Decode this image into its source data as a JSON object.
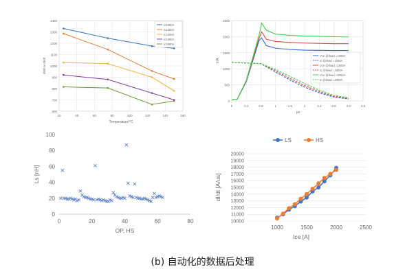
{
  "caption": "(b) 自动化的数据后处理",
  "chart_data": [
    {
      "type": "line",
      "title": "",
      "xlabel": "Temperature/°C",
      "ylabel": "dI/dt or dI/dt",
      "xlim": [
        20,
        160
      ],
      "ylim": [
        600,
        1400
      ],
      "xticks": [
        20,
        40,
        60,
        80,
        100,
        120,
        140,
        160
      ],
      "yticks": [
        600,
        700,
        800,
        900,
        1000,
        1100,
        1200,
        1300,
        1400
      ],
      "grid": true,
      "legend_position": "top-right",
      "series": [
        {
          "name": "Ic1000A",
          "color": "#3a6fb5",
          "x": [
            25,
            75,
            125,
            150
          ],
          "y": [
            1330,
            1245,
            1175,
            1155
          ]
        },
        {
          "name": "Ic1200A",
          "color": "#e07b39",
          "x": [
            25,
            75,
            125,
            150
          ],
          "y": [
            1285,
            1145,
            955,
            885
          ]
        },
        {
          "name": "Ic1400A",
          "color": "#e8b53a",
          "x": [
            25,
            75,
            125,
            150
          ],
          "y": [
            1030,
            1020,
            900,
            780
          ]
        },
        {
          "name": "Ic1600A",
          "color": "#7a3fa0",
          "x": [
            25,
            75,
            125,
            150
          ],
          "y": [
            920,
            880,
            760,
            700
          ]
        },
        {
          "name": "Ic1800A",
          "color": "#6a9a3a",
          "x": [
            25,
            75,
            125,
            150
          ],
          "y": [
            815,
            805,
            660,
            690
          ]
        }
      ]
    },
    {
      "type": "line",
      "title": "",
      "xlabel": "μs",
      "ylabel": "V/A",
      "xlim": [
        0,
        3.6
      ],
      "ylim": [
        0,
        2500
      ],
      "xticks": [
        "0",
        "0.4",
        "0.8",
        "1",
        "1.6",
        "2",
        "2.4",
        "2.8",
        "3.2",
        "3.6"
      ],
      "yticks": [
        0,
        500,
        1000,
        1500,
        2000,
        2500
      ],
      "grid": true,
      "legend_position": "lower-right",
      "series": [
        {
          "name": "Vce @Iload =1000A",
          "color": "#3a5fd0",
          "x": [
            0,
            0.15,
            0.4,
            0.75,
            0.82,
            0.95,
            1.2,
            1.6,
            2.0,
            2.4,
            2.8,
            3.2
          ],
          "y": [
            30,
            50,
            600,
            1880,
            1960,
            1720,
            1640,
            1600,
            1580,
            1575,
            1570,
            1570
          ]
        },
        {
          "name": "Ic @Iload =1000A",
          "color": "#3a5fd0",
          "x": [
            0,
            0.8,
            1.2,
            1.6,
            2.0,
            2.4,
            2.8,
            3.2
          ],
          "y": [
            1200,
            1160,
            900,
            650,
            430,
            250,
            120,
            60
          ]
        },
        {
          "name": "Vce @Iload =1600A",
          "color": "#d04a4a",
          "x": [
            0,
            0.15,
            0.4,
            0.75,
            0.82,
            0.95,
            1.2,
            1.6,
            2.0,
            2.4,
            2.8,
            3.2
          ],
          "y": [
            30,
            50,
            620,
            1950,
            2150,
            1920,
            1850,
            1820,
            1800,
            1790,
            1780,
            1780
          ]
        },
        {
          "name": "Ic @Iload =1600A",
          "color": "#d04a4a",
          "x": [
            0,
            0.8,
            1.2,
            1.6,
            2.0,
            2.4,
            2.8,
            3.2
          ],
          "y": [
            1200,
            1160,
            940,
            700,
            480,
            290,
            140,
            80
          ]
        },
        {
          "name": "Vce @Iload =2000A",
          "color": "#3ecf4a",
          "x": [
            0,
            0.15,
            0.4,
            0.75,
            0.82,
            0.95,
            1.2,
            1.6,
            2.0,
            2.4,
            2.8,
            3.2
          ],
          "y": [
            30,
            50,
            640,
            2050,
            2420,
            2200,
            2080,
            2040,
            2020,
            2010,
            2000,
            1990
          ]
        },
        {
          "name": "Ic @Iload =2000A",
          "color": "#3ecf4a",
          "x": [
            0,
            0.8,
            1.2,
            1.6,
            2.0,
            2.4,
            2.8,
            3.2
          ],
          "y": [
            1200,
            1160,
            980,
            760,
            540,
            330,
            170,
            100
          ]
        }
      ]
    },
    {
      "type": "scatter",
      "title": "",
      "xlabel": "OP, HS",
      "ylabel": "Ls [nH]",
      "xlim": [
        0,
        80
      ],
      "ylim": [
        0,
        100
      ],
      "xticks": [
        0,
        20,
        40,
        60,
        80
      ],
      "yticks": [
        0,
        20,
        40,
        60,
        80,
        100
      ],
      "marker": "x",
      "color": "#5b7fc4",
      "points": [
        [
          1,
          20
        ],
        [
          2,
          55
        ],
        [
          3,
          20
        ],
        [
          4,
          20
        ],
        [
          5,
          19
        ],
        [
          6,
          19
        ],
        [
          7,
          20
        ],
        [
          8,
          19
        ],
        [
          9,
          18
        ],
        [
          10,
          19
        ],
        [
          11,
          17
        ],
        [
          12,
          18
        ],
        [
          13,
          29
        ],
        [
          14,
          24
        ],
        [
          15,
          22
        ],
        [
          16,
          21
        ],
        [
          17,
          21
        ],
        [
          18,
          20
        ],
        [
          19,
          19
        ],
        [
          20,
          19
        ],
        [
          21,
          18
        ],
        [
          22,
          61
        ],
        [
          23,
          18
        ],
        [
          24,
          19
        ],
        [
          25,
          18
        ],
        [
          26,
          17
        ],
        [
          27,
          18
        ],
        [
          28,
          17
        ],
        [
          29,
          16
        ],
        [
          30,
          16
        ],
        [
          31,
          18
        ],
        [
          32,
          17
        ],
        [
          33,
          27
        ],
        [
          34,
          24
        ],
        [
          35,
          22
        ],
        [
          36,
          21
        ],
        [
          37,
          20
        ],
        [
          38,
          20
        ],
        [
          39,
          21
        ],
        [
          40,
          20
        ],
        [
          41,
          87
        ],
        [
          42,
          39
        ],
        [
          43,
          23
        ],
        [
          44,
          22
        ],
        [
          45,
          21
        ],
        [
          46,
          38
        ],
        [
          47,
          21
        ],
        [
          48,
          20
        ],
        [
          49,
          20
        ],
        [
          50,
          19
        ],
        [
          51,
          19
        ],
        [
          52,
          20
        ],
        [
          53,
          19
        ],
        [
          54,
          18
        ],
        [
          55,
          17
        ],
        [
          56,
          16
        ],
        [
          57,
          21
        ],
        [
          58,
          26
        ],
        [
          59,
          21
        ],
        [
          60,
          22
        ],
        [
          61,
          23
        ],
        [
          62,
          22
        ],
        [
          63,
          21
        ]
      ]
    },
    {
      "type": "line",
      "title": "",
      "xlabel": "Ice [A]",
      "ylabel": "dI/dt [A/us]",
      "xlim": [
        500,
        2500
      ],
      "ylim": [
        10000,
        20000
      ],
      "xticks": [
        1000,
        1500,
        2000,
        2500
      ],
      "yticks": [
        10000,
        11000,
        12000,
        13000,
        14000,
        15000,
        16000,
        17000,
        18000,
        19000,
        20000
      ],
      "grid": true,
      "legend_position": "top",
      "series": [
        {
          "name": "LS",
          "color": "#4472c4",
          "x": [
            1000,
            1100,
            1200,
            1300,
            1400,
            1500,
            1600,
            1700,
            1800,
            1900,
            2000
          ],
          "y": [
            10500,
            11000,
            11700,
            12200,
            12900,
            13500,
            14400,
            15000,
            15900,
            16800,
            17900
          ]
        },
        {
          "name": "HS",
          "color": "#ed7d31",
          "x": [
            1000,
            1100,
            1200,
            1300,
            1400,
            1500,
            1600,
            1700,
            1800,
            1900,
            2000
          ],
          "y": [
            10400,
            11100,
            11900,
            12500,
            13300,
            14000,
            14800,
            15600,
            16400,
            17000,
            17600
          ]
        }
      ]
    }
  ]
}
